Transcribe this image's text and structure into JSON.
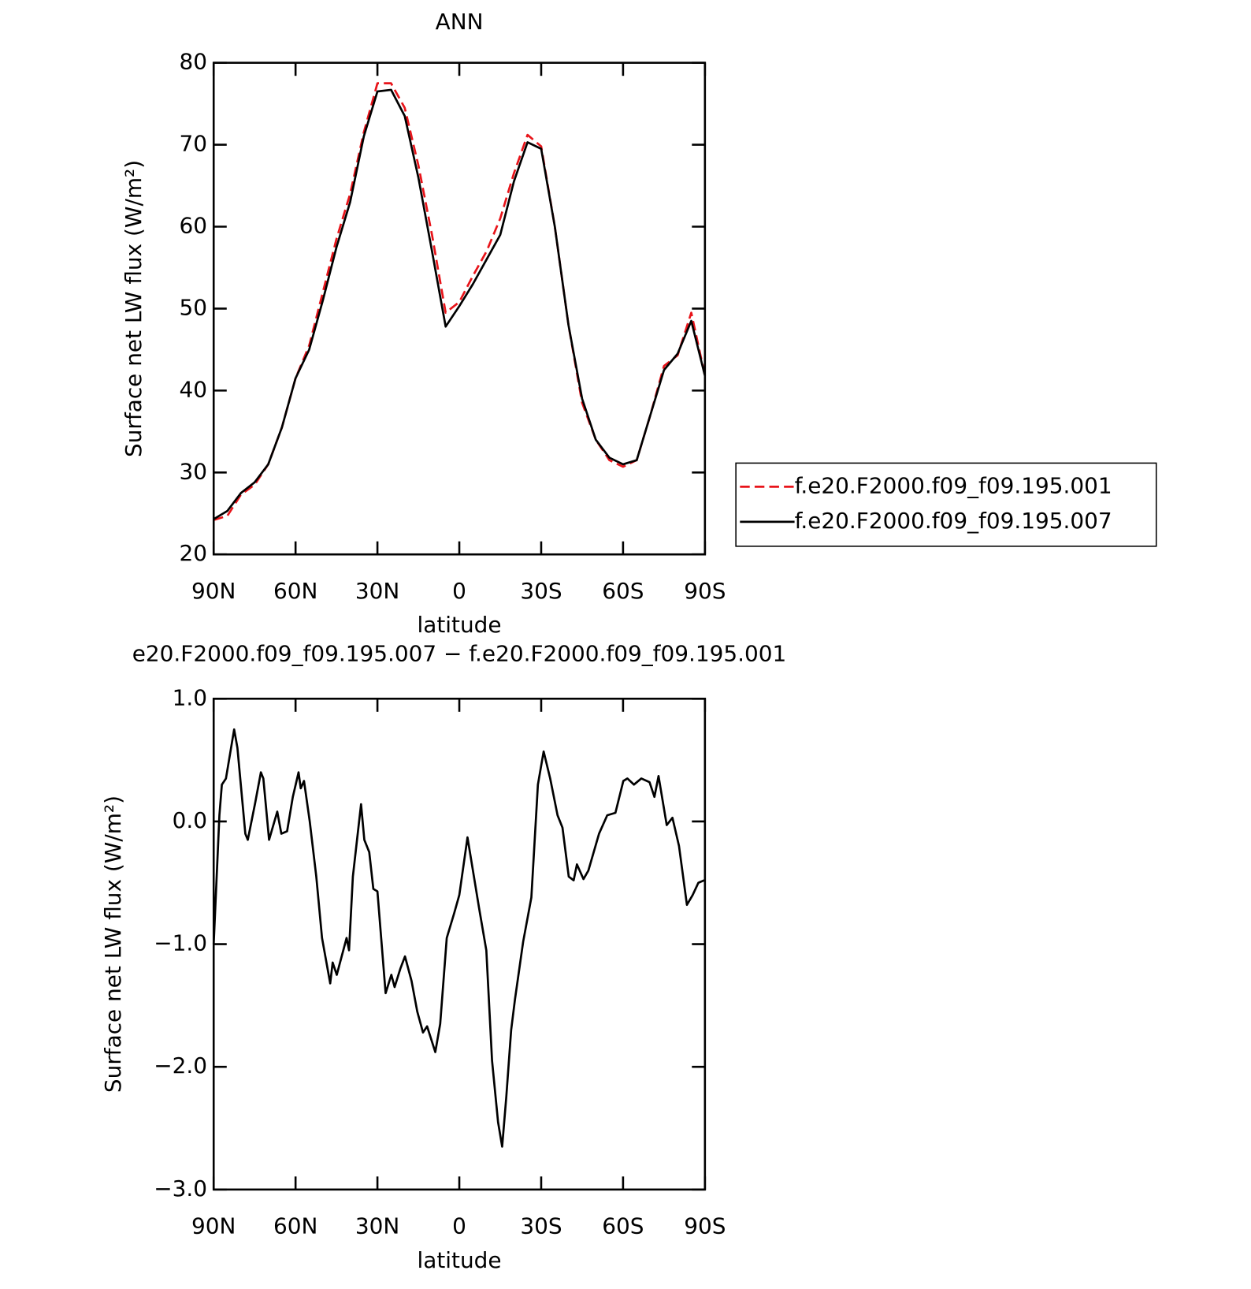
{
  "chart_data": [
    {
      "type": "line",
      "title": "ANN",
      "xlabel": "latitude",
      "ylabel": "Surface net LW flux (W/m²)",
      "xlim": [
        90,
        -90
      ],
      "xticks": [
        {
          "value": 90,
          "label": "90N"
        },
        {
          "value": 60,
          "label": "60N"
        },
        {
          "value": 30,
          "label": "30N"
        },
        0,
        {
          "value": -30,
          "label": "30S"
        },
        {
          "value": -60,
          "label": "60S"
        },
        {
          "value": -90,
          "label": "90S"
        }
      ],
      "ylim": [
        20,
        80
      ],
      "yticks": [
        20,
        30,
        40,
        50,
        60,
        70,
        80
      ],
      "legend": "right",
      "x": [
        90,
        85,
        80,
        75,
        70,
        65,
        60,
        55,
        50,
        45,
        40,
        35,
        30,
        25,
        20,
        15,
        10,
        5,
        0,
        -5,
        -10,
        -15,
        -20,
        -25,
        -30,
        -35,
        -40,
        -45,
        -50,
        -55,
        -60,
        -65,
        -70,
        -75,
        -80,
        -85,
        -90
      ],
      "series": [
        {
          "name": "f.e20.F2000.f09_f09.195.001",
          "color": "#e8141a",
          "linestyle": "dashed",
          "values": [
            24.2,
            24.7,
            27.3,
            28.5,
            31,
            35.5,
            41.5,
            45.5,
            52,
            58.5,
            64,
            71.5,
            77.5,
            77.5,
            74.5,
            67.5,
            59,
            49.5,
            50.8,
            54,
            57,
            61,
            66.5,
            71.2,
            69.8,
            60,
            48,
            38.5,
            34,
            31.5,
            30.7,
            31.5,
            37,
            43,
            44.3,
            49.5,
            41.8
          ]
        },
        {
          "name": "f.e20.F2000.f09_f09.195.007",
          "color": "#000000",
          "linestyle": "solid",
          "values": [
            24.3,
            25.3,
            27.5,
            28.8,
            31,
            35.5,
            41.5,
            45,
            51,
            57.5,
            63,
            71,
            76.5,
            76.7,
            73.5,
            66,
            57,
            47.8,
            50.3,
            53,
            56,
            59,
            65.5,
            70.3,
            69.5,
            60,
            48,
            39,
            34,
            31.8,
            31,
            31.5,
            37,
            42.5,
            44.5,
            48.5,
            41.8
          ]
        }
      ]
    },
    {
      "type": "line",
      "title": "e20.F2000.f09_f09.195.007 − f.e20.F2000.f09_f09.195.001",
      "xlabel": "latitude",
      "ylabel": "Surface net LW flux (W/m²)",
      "xlim": [
        90,
        -90
      ],
      "xticks": [
        {
          "value": 90,
          "label": "90N"
        },
        {
          "value": 60,
          "label": "60N"
        },
        {
          "value": 30,
          "label": "30N"
        },
        0,
        {
          "value": -30,
          "label": "30S"
        },
        {
          "value": -60,
          "label": "60S"
        },
        {
          "value": -90,
          "label": "90S"
        }
      ],
      "ylim": [
        -3,
        1
      ],
      "yticks": [
        {
          "value": -3,
          "label": "−3.0"
        },
        {
          "value": -2,
          "label": "−2.0"
        },
        {
          "value": -1,
          "label": "−1.0"
        },
        {
          "value": 0,
          "label": "0.0"
        },
        {
          "value": 1,
          "label": "1.0"
        }
      ],
      "x": [
        90,
        87.9,
        87.0,
        85.5,
        82.5,
        81.3,
        78.4,
        77.5,
        74.8,
        72.7,
        71.8,
        69.7,
        66.7,
        65.2,
        63.1,
        61.0,
        58.9,
        58.1,
        56.9,
        54.8,
        52.4,
        50.3,
        47.3,
        46.4,
        44.9,
        41.3,
        40.4,
        39.0,
        36.0,
        34.8,
        33.0,
        31.5,
        30.0,
        27.0,
        24.9,
        23.7,
        21.6,
        19.9,
        17.5,
        15.4,
        13.3,
        11.8,
        8.8,
        7.0,
        4.6,
        1.9,
        0,
        -3.0,
        -7.2,
        -9.9,
        -12.0,
        -14.2,
        -15.7,
        -17.2,
        -19.0,
        -20.4,
        -23.4,
        -26.4,
        -28.8,
        -30.9,
        -33.3,
        -36.0,
        -37.8,
        -40.1,
        -41.9,
        -43.1,
        -45.5,
        -47.3,
        -51.2,
        -54.2,
        -57.2,
        -60.1,
        -61.6,
        -64.0,
        -66.7,
        -69.7,
        -71.5,
        -73.0,
        -76.0,
        -78.1,
        -80.5,
        -83.4,
        -85.5,
        -87.6,
        -89.7
      ],
      "series": [
        {
          "color": "#000000",
          "linestyle": "solid",
          "values": [
            -1.0,
            0.05,
            0.3,
            0.35,
            0.75,
            0.6,
            -0.1,
            -0.15,
            0.15,
            0.4,
            0.35,
            -0.15,
            0.08,
            -0.1,
            -0.08,
            0.2,
            0.4,
            0.27,
            0.33,
            0.0,
            -0.45,
            -0.95,
            -1.32,
            -1.15,
            -1.25,
            -0.95,
            -1.05,
            -0.45,
            0.14,
            -0.15,
            -0.25,
            -0.55,
            -0.57,
            -1.4,
            -1.25,
            -1.35,
            -1.2,
            -1.1,
            -1.3,
            -1.55,
            -1.72,
            -1.67,
            -1.88,
            -1.65,
            -0.95,
            -0.75,
            -0.6,
            -0.13,
            -0.7,
            -1.05,
            -1.95,
            -2.45,
            -2.65,
            -2.25,
            -1.7,
            -1.45,
            -0.98,
            -0.62,
            0.3,
            0.57,
            0.35,
            0.05,
            -0.05,
            -0.45,
            -0.48,
            -0.35,
            -0.47,
            -0.4,
            -0.1,
            0.05,
            0.07,
            0.33,
            0.35,
            0.3,
            0.35,
            0.32,
            0.2,
            0.37,
            -0.03,
            0.03,
            -0.2,
            -0.68,
            -0.6,
            -0.5,
            -0.48
          ]
        }
      ]
    }
  ]
}
